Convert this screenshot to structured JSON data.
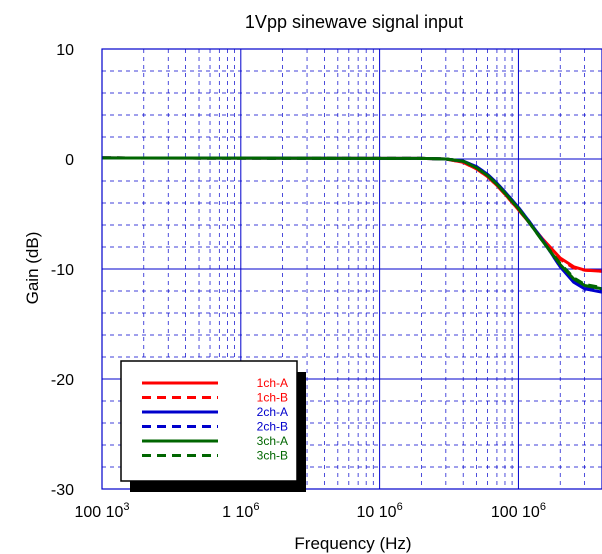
{
  "chart_data": {
    "type": "line",
    "title": "1Vpp sinewave signal input",
    "xlabel": "Frequency (Hz)",
    "ylabel": "Gain (dB)",
    "x_scale": "log",
    "x_range_hz": [
      100000,
      400000000
    ],
    "ylim": [
      -30,
      10
    ],
    "grid": true,
    "x_ticks": [
      {
        "value": 100000,
        "label": "100 10",
        "exp": "3"
      },
      {
        "value": 1000000,
        "label": "1 10",
        "exp": "6"
      },
      {
        "value": 10000000,
        "label": "10 10",
        "exp": "6"
      },
      {
        "value": 100000000,
        "label": "100 10",
        "exp": "6"
      }
    ],
    "y_ticks": [
      {
        "value": 10,
        "label": "10"
      },
      {
        "value": 0,
        "label": "0"
      },
      {
        "value": -10,
        "label": "-10"
      },
      {
        "value": -20,
        "label": "-20"
      },
      {
        "value": -30,
        "label": "-30"
      }
    ],
    "legend_position": "bottom-left",
    "series": [
      {
        "name": "1ch-A",
        "color": "#ff0000",
        "dash": "solid",
        "x": [
          100000,
          10000000,
          20000000,
          30000000,
          40000000,
          50000000,
          60000000,
          70000000,
          80000000,
          100000000,
          120000000,
          150000000,
          200000000,
          250000000,
          300000000,
          400000000
        ],
        "y": [
          0.1,
          0.05,
          0.05,
          0.0,
          -0.3,
          -0.9,
          -1.6,
          -2.4,
          -3.2,
          -4.6,
          -5.8,
          -7.3,
          -9.0,
          -9.8,
          -10.1,
          -10.2
        ]
      },
      {
        "name": "1ch-B",
        "color": "#ff0000",
        "dash": "dashed",
        "x": [
          100000,
          10000000,
          20000000,
          30000000,
          40000000,
          50000000,
          60000000,
          70000000,
          80000000,
          100000000,
          120000000,
          150000000,
          200000000,
          250000000,
          300000000,
          400000000
        ],
        "y": [
          0.1,
          0.05,
          0.05,
          0.0,
          -0.3,
          -0.9,
          -1.6,
          -2.4,
          -3.2,
          -4.6,
          -5.8,
          -7.4,
          -9.1,
          -9.9,
          -10.1,
          -10.2
        ]
      },
      {
        "name": "2ch-A",
        "color": "#0000cc",
        "dash": "solid",
        "x": [
          100000,
          10000000,
          20000000,
          30000000,
          40000000,
          50000000,
          60000000,
          70000000,
          80000000,
          100000000,
          120000000,
          150000000,
          200000000,
          250000000,
          300000000,
          400000000
        ],
        "y": [
          0.1,
          0.05,
          0.05,
          0.0,
          -0.2,
          -0.7,
          -1.4,
          -2.2,
          -3.0,
          -4.4,
          -5.7,
          -7.4,
          -9.8,
          -11.2,
          -11.8,
          -12.1
        ]
      },
      {
        "name": "2ch-B",
        "color": "#0000cc",
        "dash": "dashed",
        "x": [
          100000,
          10000000,
          20000000,
          30000000,
          40000000,
          50000000,
          60000000,
          70000000,
          80000000,
          100000000,
          120000000,
          150000000,
          200000000,
          250000000,
          300000000,
          400000000
        ],
        "y": [
          0.1,
          0.05,
          0.05,
          0.0,
          -0.2,
          -0.7,
          -1.4,
          -2.2,
          -3.0,
          -4.4,
          -5.7,
          -7.4,
          -9.8,
          -11.1,
          -11.7,
          -12.0
        ]
      },
      {
        "name": "3ch-A",
        "color": "#006600",
        "dash": "solid",
        "x": [
          100000,
          10000000,
          20000000,
          30000000,
          40000000,
          50000000,
          60000000,
          70000000,
          80000000,
          100000000,
          120000000,
          150000000,
          200000000,
          250000000,
          300000000,
          400000000
        ],
        "y": [
          0.1,
          0.05,
          0.05,
          0.0,
          -0.2,
          -0.8,
          -1.5,
          -2.3,
          -3.1,
          -4.5,
          -5.8,
          -7.5,
          -9.6,
          -10.9,
          -11.5,
          -11.8
        ]
      },
      {
        "name": "3ch-B",
        "color": "#006600",
        "dash": "dashed",
        "x": [
          100000,
          10000000,
          20000000,
          30000000,
          40000000,
          50000000,
          60000000,
          70000000,
          80000000,
          100000000,
          120000000,
          150000000,
          200000000,
          250000000,
          300000000,
          400000000
        ],
        "y": [
          0.1,
          0.05,
          0.05,
          0.0,
          -0.2,
          -0.8,
          -1.5,
          -2.3,
          -3.1,
          -4.5,
          -5.8,
          -7.5,
          -9.5,
          -10.8,
          -11.4,
          -11.7
        ]
      }
    ]
  }
}
